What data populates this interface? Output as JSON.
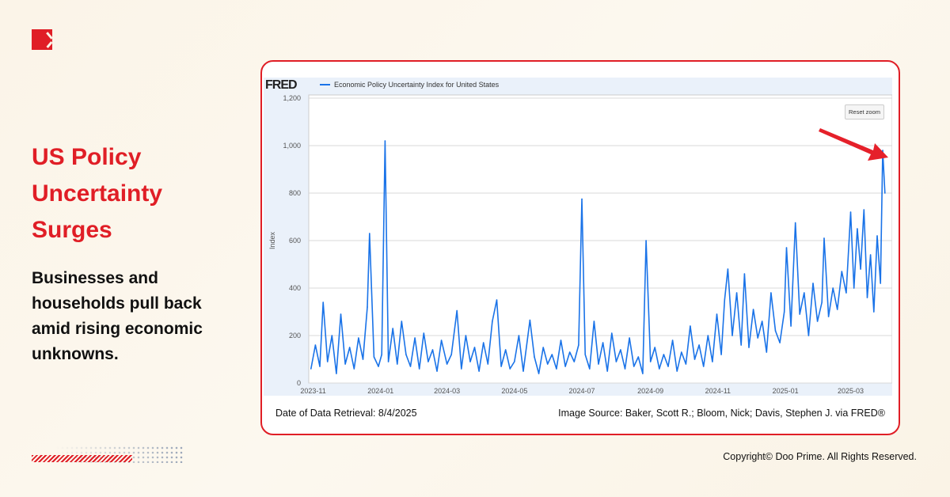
{
  "brand": {
    "logo": "doo-prime-logo"
  },
  "headline": "US Policy Uncertainty Surges",
  "subheadline": "Businesses and households pull back amid rising economic unknowns.",
  "footer": {
    "retrieval": "Date of Data Retrieval: 8/4/2025",
    "source": "Image Source: Baker, Scott R.; Bloom, Nick; Davis, Stephen J. via FRED®",
    "copyright": "Copyright© Doo Prime. All Rights Reserved."
  },
  "chart_data": {
    "type": "line",
    "source_logo": "FRED",
    "reset_zoom_label": "Reset zoom",
    "ylabel": "Index",
    "ylim": [
      0,
      1200
    ],
    "yticks": [
      0,
      200,
      400,
      600,
      800,
      1000,
      1200
    ],
    "ytick_labels": [
      "0",
      "200",
      "400",
      "600",
      "800",
      "1,000",
      "1,200"
    ],
    "xlim": [
      "2023-10-28",
      "2025-04-04"
    ],
    "xticks": [
      "2023-11",
      "2024-01",
      "2024-03",
      "2024-05",
      "2024-07",
      "2024-09",
      "2024-11",
      "2025-01",
      "2025-03"
    ],
    "grid": true,
    "series": [
      {
        "name": "Economic Policy Uncertainty Index for United States",
        "color": "#1a73e8",
        "x": [
          "2023-10-30",
          "2023-11-03",
          "2023-11-07",
          "2023-11-10",
          "2023-11-14",
          "2023-11-18",
          "2023-11-22",
          "2023-11-26",
          "2023-11-30",
          "2023-12-04",
          "2023-12-08",
          "2023-12-12",
          "2023-12-16",
          "2023-12-20",
          "2023-12-22",
          "2023-12-26",
          "2023-12-30",
          "2024-01-02",
          "2024-01-05",
          "2024-01-08",
          "2024-01-12",
          "2024-01-16",
          "2024-01-20",
          "2024-01-24",
          "2024-01-28",
          "2024-02-01",
          "2024-02-05",
          "2024-02-09",
          "2024-02-13",
          "2024-02-17",
          "2024-02-21",
          "2024-02-25",
          "2024-03-01",
          "2024-03-05",
          "2024-03-10",
          "2024-03-14",
          "2024-03-18",
          "2024-03-22",
          "2024-03-26",
          "2024-03-30",
          "2024-04-03",
          "2024-04-07",
          "2024-04-11",
          "2024-04-15",
          "2024-04-19",
          "2024-04-23",
          "2024-04-27",
          "2024-05-01",
          "2024-05-05",
          "2024-05-09",
          "2024-05-15",
          "2024-05-19",
          "2024-05-23",
          "2024-05-27",
          "2024-05-31",
          "2024-06-04",
          "2024-06-08",
          "2024-06-12",
          "2024-06-16",
          "2024-06-20",
          "2024-06-24",
          "2024-06-28",
          "2024-07-01",
          "2024-07-04",
          "2024-07-08",
          "2024-07-12",
          "2024-07-16",
          "2024-07-20",
          "2024-07-24",
          "2024-07-28",
          "2024-08-01",
          "2024-08-05",
          "2024-08-09",
          "2024-08-13",
          "2024-08-17",
          "2024-08-21",
          "2024-08-25",
          "2024-08-28",
          "2024-09-01",
          "2024-09-05",
          "2024-09-09",
          "2024-09-13",
          "2024-09-17",
          "2024-09-21",
          "2024-09-25",
          "2024-09-29",
          "2024-10-03",
          "2024-10-07",
          "2024-10-11",
          "2024-10-15",
          "2024-10-19",
          "2024-10-23",
          "2024-10-27",
          "2024-10-31",
          "2024-11-04",
          "2024-11-07",
          "2024-11-10",
          "2024-11-14",
          "2024-11-18",
          "2024-11-22",
          "2024-11-25",
          "2024-11-29",
          "2024-12-03",
          "2024-12-07",
          "2024-12-11",
          "2024-12-15",
          "2024-12-19",
          "2024-12-23",
          "2024-12-27",
          "2024-12-31",
          "2025-01-02",
          "2025-01-06",
          "2025-01-10",
          "2025-01-14",
          "2025-01-18",
          "2025-01-22",
          "2025-01-26",
          "2025-01-30",
          "2025-02-03",
          "2025-02-05",
          "2025-02-09",
          "2025-02-13",
          "2025-02-17",
          "2025-02-21",
          "2025-02-25",
          "2025-03-01",
          "2025-03-04",
          "2025-03-07",
          "2025-03-10",
          "2025-03-13",
          "2025-03-16",
          "2025-03-19",
          "2025-03-22",
          "2025-03-25",
          "2025-03-28",
          "2025-03-30",
          "2025-04-01"
        ],
        "y": [
          60,
          160,
          70,
          340,
          90,
          200,
          40,
          290,
          80,
          150,
          60,
          190,
          100,
          320,
          630,
          110,
          70,
          120,
          1020,
          90,
          230,
          80,
          260,
          120,
          70,
          190,
          60,
          210,
          90,
          140,
          50,
          180,
          80,
          120,
          305,
          60,
          200,
          90,
          150,
          50,
          170,
          80,
          260,
          350,
          70,
          140,
          60,
          90,
          200,
          50,
          265,
          110,
          40,
          150,
          80,
          120,
          60,
          180,
          70,
          130,
          90,
          160,
          775,
          120,
          60,
          260,
          80,
          170,
          50,
          210,
          90,
          140,
          60,
          190,
          70,
          110,
          40,
          600,
          90,
          150,
          60,
          120,
          70,
          180,
          50,
          130,
          80,
          240,
          100,
          160,
          70,
          200,
          90,
          290,
          120,
          350,
          480,
          200,
          380,
          160,
          460,
          150,
          310,
          190,
          260,
          130,
          380,
          220,
          170,
          300,
          570,
          240,
          675,
          290,
          380,
          200,
          420,
          260,
          340,
          610,
          280,
          400,
          310,
          470,
          380,
          720,
          400,
          650,
          480,
          730,
          360,
          540,
          300,
          620,
          420,
          980,
          800
        ]
      }
    ]
  }
}
